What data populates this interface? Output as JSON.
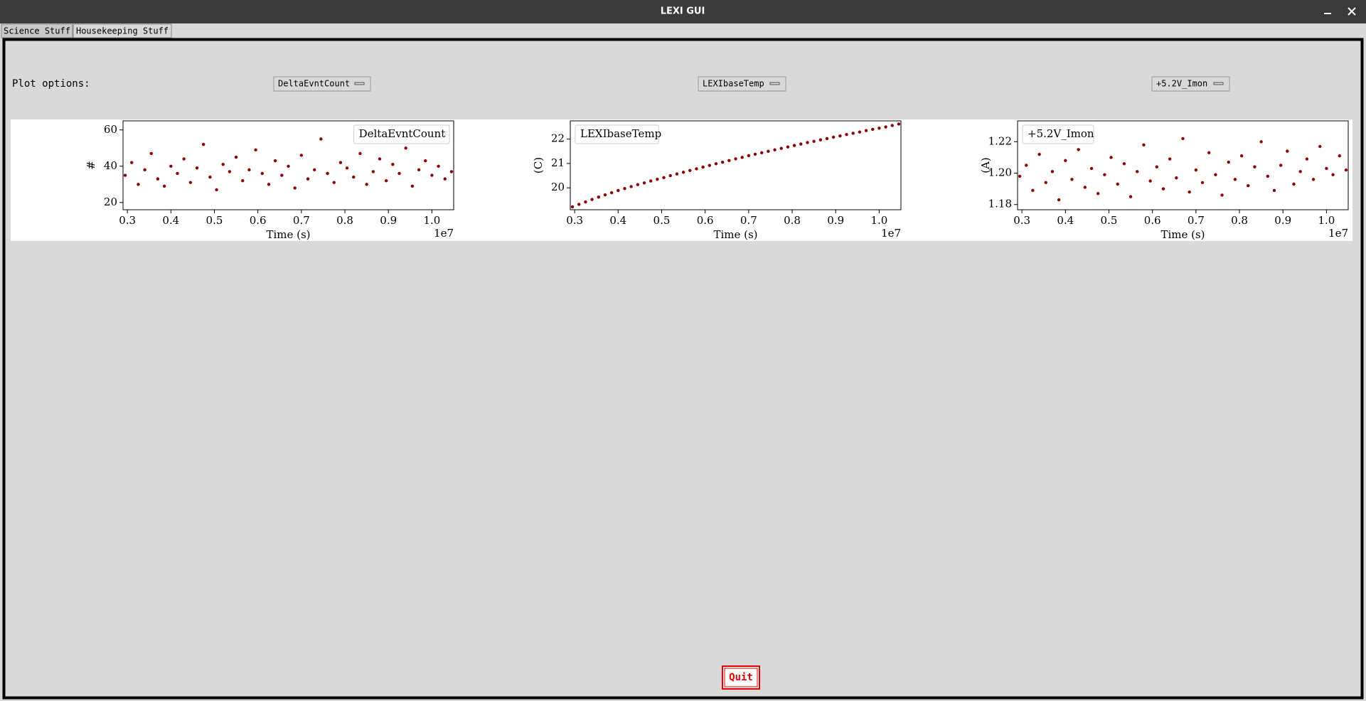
{
  "window": {
    "title": "LEXI GUI"
  },
  "tabs": [
    "Science Stuff",
    "Housekeeping Stuff"
  ],
  "plot_options_label": "Plot options:",
  "dropdowns": [
    "DeltaEvntCount",
    "LEXIbaseTemp",
    "+5.2V_Imon"
  ],
  "quit": "Quit",
  "chart_data": [
    {
      "type": "scatter",
      "x_label": "Time (s)",
      "x_offset_label": "1e7",
      "y_label": "#",
      "legend": "upper right",
      "xlim": [
        2900000,
        10500000
      ],
      "xticks": [
        {
          "value": 3000000,
          "label": "0.3"
        },
        {
          "value": 4000000,
          "label": "0.4"
        },
        {
          "value": 5000000,
          "label": "0.5"
        },
        {
          "value": 6000000,
          "label": "0.6"
        },
        {
          "value": 7000000,
          "label": "0.7"
        },
        {
          "value": 8000000,
          "label": "0.8"
        },
        {
          "value": 9000000,
          "label": "0.9"
        },
        {
          "value": 10000000,
          "label": "1.0"
        }
      ],
      "ylim": [
        16,
        65
      ],
      "yticks": [
        20,
        40,
        60
      ],
      "x": [
        2950000,
        3100000,
        3250000,
        3400000,
        3550000,
        3700000,
        3850000,
        4000000,
        4150000,
        4300000,
        4450000,
        4600000,
        4750000,
        4900000,
        5050000,
        5200000,
        5350000,
        5500000,
        5650000,
        5800000,
        5950000,
        6100000,
        6250000,
        6400000,
        6550000,
        6700000,
        6850000,
        7000000,
        7150000,
        7300000,
        7450000,
        7600000,
        7750000,
        7900000,
        8050000,
        8200000,
        8350000,
        8500000,
        8650000,
        8800000,
        8950000,
        9100000,
        9250000,
        9400000,
        9550000,
        9700000,
        9850000,
        10000000,
        10150000,
        10300000,
        10450000
      ],
      "series": [
        {
          "name": "DeltaEvntCount",
          "color": "#8b0000",
          "values": [
            35,
            42,
            30,
            38,
            47,
            33,
            29,
            40,
            36,
            44,
            31,
            39,
            52,
            34,
            27,
            41,
            37,
            45,
            32,
            38,
            49,
            36,
            30,
            43,
            35,
            40,
            28,
            46,
            33,
            38,
            55,
            36,
            31,
            42,
            39,
            34,
            47,
            30,
            37,
            44,
            32,
            41,
            36,
            50,
            29,
            38,
            43,
            35,
            40,
            33,
            37
          ]
        }
      ]
    },
    {
      "type": "scatter",
      "x_label": "Time (s)",
      "x_offset_label": "1e7",
      "y_label": "(C)",
      "legend": "upper left",
      "xlim": [
        2900000,
        10500000
      ],
      "xticks": [
        {
          "value": 3000000,
          "label": "0.3"
        },
        {
          "value": 4000000,
          "label": "0.4"
        },
        {
          "value": 5000000,
          "label": "0.5"
        },
        {
          "value": 6000000,
          "label": "0.6"
        },
        {
          "value": 7000000,
          "label": "0.7"
        },
        {
          "value": 8000000,
          "label": "0.8"
        },
        {
          "value": 9000000,
          "label": "0.9"
        },
        {
          "value": 10000000,
          "label": "1.0"
        }
      ],
      "ylim": [
        19.1,
        22.75
      ],
      "yticks": [
        20,
        21,
        22
      ],
      "x": [
        2950000,
        3100000,
        3250000,
        3400000,
        3550000,
        3700000,
        3850000,
        4000000,
        4150000,
        4300000,
        4450000,
        4600000,
        4750000,
        4900000,
        5050000,
        5200000,
        5350000,
        5500000,
        5650000,
        5800000,
        5950000,
        6100000,
        6250000,
        6400000,
        6550000,
        6700000,
        6850000,
        7000000,
        7150000,
        7300000,
        7450000,
        7600000,
        7750000,
        7900000,
        8050000,
        8200000,
        8350000,
        8500000,
        8650000,
        8800000,
        8950000,
        9100000,
        9250000,
        9400000,
        9550000,
        9700000,
        9850000,
        10000000,
        10150000,
        10300000,
        10450000
      ],
      "series": [
        {
          "name": "LEXIbaseTemp",
          "color": "#8b0000",
          "values": [
            19.22,
            19.32,
            19.42,
            19.52,
            19.62,
            19.71,
            19.8,
            19.89,
            19.97,
            20.05,
            20.13,
            20.2,
            20.28,
            20.35,
            20.42,
            20.5,
            20.57,
            20.64,
            20.71,
            20.78,
            20.85,
            20.92,
            20.99,
            21.05,
            21.12,
            21.19,
            21.25,
            21.32,
            21.38,
            21.44,
            21.5,
            21.56,
            21.62,
            21.68,
            21.74,
            21.8,
            21.86,
            21.91,
            21.97,
            22.02,
            22.08,
            22.13,
            22.19,
            22.24,
            22.29,
            22.35,
            22.4,
            22.45,
            22.5,
            22.56,
            22.62
          ]
        }
      ]
    },
    {
      "type": "scatter",
      "x_label": "Time (s)",
      "x_offset_label": "1e7",
      "y_label": "(A)",
      "legend": "upper left",
      "xlim": [
        2900000,
        10500000
      ],
      "xticks": [
        {
          "value": 3000000,
          "label": "0.3"
        },
        {
          "value": 4000000,
          "label": "0.4"
        },
        {
          "value": 5000000,
          "label": "0.5"
        },
        {
          "value": 6000000,
          "label": "0.6"
        },
        {
          "value": 7000000,
          "label": "0.7"
        },
        {
          "value": 8000000,
          "label": "0.8"
        },
        {
          "value": 9000000,
          "label": "0.9"
        },
        {
          "value": 10000000,
          "label": "1.0"
        }
      ],
      "ylim": [
        1.1767,
        1.2333
      ],
      "yticks": [
        1.18,
        {
          "value": 1.2,
          "label": "1.20"
        },
        1.22
      ],
      "x": [
        2950000,
        3100000,
        3250000,
        3400000,
        3550000,
        3700000,
        3850000,
        4000000,
        4150000,
        4300000,
        4450000,
        4600000,
        4750000,
        4900000,
        5050000,
        5200000,
        5350000,
        5500000,
        5650000,
        5800000,
        5950000,
        6100000,
        6250000,
        6400000,
        6550000,
        6700000,
        6850000,
        7000000,
        7150000,
        7300000,
        7450000,
        7600000,
        7750000,
        7900000,
        8050000,
        8200000,
        8350000,
        8500000,
        8650000,
        8800000,
        8950000,
        9100000,
        9250000,
        9400000,
        9550000,
        9700000,
        9850000,
        10000000,
        10150000,
        10300000,
        10450000
      ],
      "series": [
        {
          "name": "+5.2V_Imon",
          "color": "#8b0000",
          "values": [
            1.198,
            1.205,
            1.189,
            1.212,
            1.194,
            1.201,
            1.183,
            1.208,
            1.196,
            1.215,
            1.191,
            1.203,
            1.187,
            1.199,
            1.21,
            1.193,
            1.206,
            1.185,
            1.201,
            1.218,
            1.195,
            1.204,
            1.19,
            1.209,
            1.197,
            1.222,
            1.188,
            1.202,
            1.194,
            1.213,
            1.199,
            1.186,
            1.207,
            1.196,
            1.211,
            1.192,
            1.204,
            1.22,
            1.198,
            1.189,
            1.205,
            1.214,
            1.193,
            1.201,
            1.209,
            1.196,
            1.217,
            1.203,
            1.199,
            1.211,
            1.202
          ]
        }
      ]
    }
  ]
}
